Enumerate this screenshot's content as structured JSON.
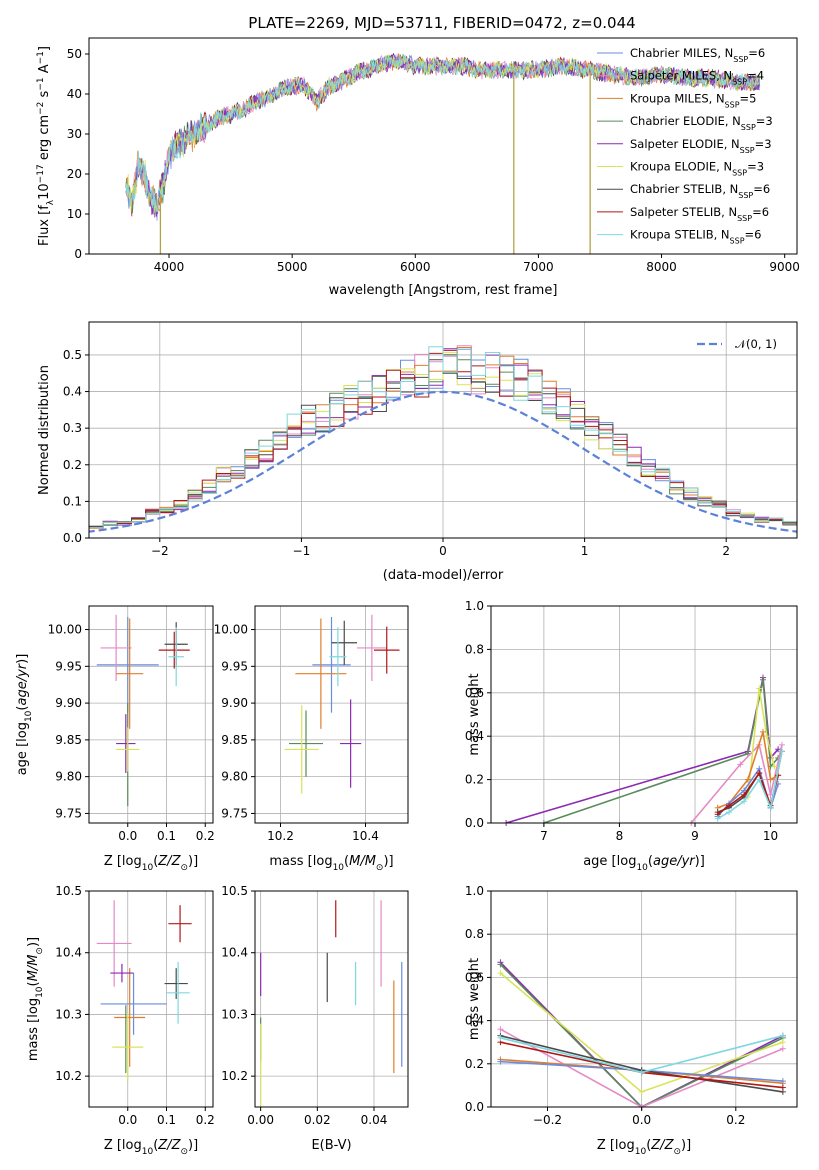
{
  "title": "PLATE=2269, MJD=53711, FIBERID=0472, z=0.044",
  "colors": {
    "chabrier_miles": "#6a8be0",
    "salpeter_miles": "#e58ac7",
    "kroupa_miles": "#e07f2b",
    "chabrier_elodie": "#5a8a5a",
    "salpeter_elodie": "#8c2ab0",
    "kroupa_elodie": "#d9e35a",
    "chabrier_stelib": "#4a4a4a",
    "salpeter_stelib": "#b01818",
    "kroupa_stelib": "#7fd8df"
  },
  "models": [
    {
      "key": "chabrier_miles",
      "label": "Chabrier MILES, N",
      "n": "=6"
    },
    {
      "key": "salpeter_miles",
      "label": "Salpeter MILES, N",
      "n": "=4"
    },
    {
      "key": "kroupa_miles",
      "label": "Kroupa MILES, N",
      "n": "=5"
    },
    {
      "key": "chabrier_elodie",
      "label": "Chabrier ELODIE, N",
      "n": "=3"
    },
    {
      "key": "salpeter_elodie",
      "label": "Salpeter ELODIE, N",
      "n": "=3"
    },
    {
      "key": "kroupa_elodie",
      "label": "Kroupa ELODIE, N",
      "n": "=3"
    },
    {
      "key": "chabrier_stelib",
      "label": "Chabrier STELIB, N",
      "n": "=6"
    },
    {
      "key": "salpeter_stelib",
      "label": "Salpeter STELIB, N",
      "n": "=6"
    },
    {
      "key": "kroupa_stelib",
      "label": "Kroupa STELIB, N",
      "n": "=6"
    }
  ],
  "nssp_sub": "SSP",
  "chart_data": [
    {
      "type": "line",
      "xlabel": "wavelength [Angstrom, rest frame]",
      "ylabel_parts": [
        "Flux [f",
        "λ",
        "10",
        "−17",
        " erg cm",
        "−2",
        " s",
        "−1",
        " A",
        "−1",
        "]"
      ],
      "xlim": [
        3350,
        9100
      ],
      "ylim": [
        0,
        54
      ],
      "xticks": [
        4000,
        5000,
        6000,
        7000,
        8000,
        9000
      ],
      "yticks": [
        0,
        10,
        20,
        30,
        40,
        50
      ],
      "spectrum_anchors": [
        [
          3650,
          17
        ],
        [
          3700,
          13
        ],
        [
          3750,
          22
        ],
        [
          3800,
          20
        ],
        [
          3850,
          14
        ],
        [
          3900,
          12
        ],
        [
          3950,
          17
        ],
        [
          4000,
          25
        ],
        [
          4100,
          28
        ],
        [
          4200,
          30
        ],
        [
          4300,
          32
        ],
        [
          4400,
          34
        ],
        [
          4500,
          35
        ],
        [
          4600,
          36
        ],
        [
          4700,
          38
        ],
        [
          4800,
          39
        ],
        [
          4900,
          41
        ],
        [
          5000,
          42
        ],
        [
          5100,
          42
        ],
        [
          5200,
          38
        ],
        [
          5300,
          42
        ],
        [
          5400,
          43
        ],
        [
          5500,
          45
        ],
        [
          5600,
          46
        ],
        [
          5700,
          47
        ],
        [
          5800,
          48
        ],
        [
          5900,
          48
        ],
        [
          6000,
          47
        ],
        [
          6100,
          47
        ],
        [
          6200,
          47
        ],
        [
          6300,
          47
        ],
        [
          6400,
          47
        ],
        [
          6500,
          46
        ],
        [
          6600,
          46
        ],
        [
          6800,
          46
        ],
        [
          7000,
          46
        ],
        [
          7200,
          47
        ],
        [
          7400,
          46
        ],
        [
          7600,
          45
        ],
        [
          7800,
          44
        ],
        [
          8000,
          45
        ],
        [
          8200,
          44
        ],
        [
          8400,
          44
        ],
        [
          8600,
          43
        ],
        [
          8800,
          43
        ]
      ],
      "dips": [
        {
          "x": 3930,
          "y": 0
        },
        {
          "x": 6800,
          "y": 0
        },
        {
          "x": 7420,
          "y": 0
        }
      ]
    },
    {
      "type": "bar",
      "xlabel": "(data-model)/error",
      "ylabel": "Normed distribution",
      "xlim": [
        -2.5,
        2.5
      ],
      "ylim": [
        0,
        0.59
      ],
      "xticks": [
        -2,
        -1,
        0,
        1,
        2
      ],
      "xticklabels": [
        "−2",
        "−1",
        "0",
        "1",
        "2"
      ],
      "yticks": [
        0,
        0.1,
        0.2,
        0.3,
        0.4,
        0.5
      ],
      "yticklabels": [
        "0.0",
        "0.1",
        "0.2",
        "0.3",
        "0.4",
        "0.5"
      ],
      "bin_width": 0.1,
      "base_hist": [
        0.01,
        0.02,
        0.02,
        0.03,
        0.02,
        0.03,
        0.04,
        0.04,
        0.05,
        0.07,
        0.08,
        0.09,
        0.12,
        0.14,
        0.17,
        0.19,
        0.22,
        0.24,
        0.27,
        0.3,
        0.32,
        0.33,
        0.35,
        0.37,
        0.38,
        0.4,
        0.41,
        0.43,
        0.44,
        0.46,
        0.47,
        0.47,
        0.45,
        0.46,
        0.44,
        0.43,
        0.41,
        0.38,
        0.36,
        0.34,
        0.31,
        0.28,
        0.25,
        0.22,
        0.19,
        0.17,
        0.14,
        0.12,
        0.1,
        0.09,
        0.07,
        0.06,
        0.05,
        0.05,
        0.04,
        0.03,
        0.03,
        0.02,
        0.02,
        0.01
      ],
      "normal_label": "𝒩(0, 1)"
    },
    {
      "type": "scatter",
      "xlabel": "Z [log",
      "ylabel": "age  [log",
      "xlim": [
        -0.1,
        0.22
      ],
      "ylim": [
        9.737,
        10.032
      ],
      "xticks": [
        0.0,
        0.1,
        0.2
      ],
      "xticklabels": [
        "0.0",
        "0.1",
        "0.2"
      ],
      "yticks": [
        9.75,
        9.8,
        9.85,
        9.9,
        9.95,
        10.0
      ],
      "yticklabels": [
        "9.75",
        "9.80",
        "9.85",
        "9.90",
        "9.95",
        "10.00"
      ],
      "points": [
        {
          "key": "chabrier_miles",
          "x": 0.0,
          "xe": 0.08,
          "y": 9.952,
          "ye": 0.065
        },
        {
          "key": "salpeter_miles",
          "x": -0.03,
          "xe": 0.04,
          "y": 9.975,
          "ye": 0.045
        },
        {
          "key": "kroupa_miles",
          "x": 0.005,
          "xe": 0.035,
          "y": 9.94,
          "ye": 0.075
        },
        {
          "key": "chabrier_elodie",
          "x": 0.0,
          "xe": 0.0,
          "y": 9.83,
          "ye": 0.07
        },
        {
          "key": "salpeter_elodie",
          "x": -0.005,
          "xe": 0.025,
          "y": 9.845,
          "ye": 0.04
        },
        {
          "key": "kroupa_elodie",
          "x": 0.0,
          "xe": 0.03,
          "y": 9.837,
          "ye": 0.03
        },
        {
          "key": "chabrier_stelib",
          "x": 0.125,
          "xe": 0.03,
          "y": 9.98,
          "ye": 0.03
        },
        {
          "key": "salpeter_stelib",
          "x": 0.12,
          "xe": 0.04,
          "y": 9.972,
          "ye": 0.025
        },
        {
          "key": "kroupa_stelib",
          "x": 0.125,
          "xe": 0.02,
          "y": 9.963,
          "ye": 0.04
        }
      ]
    },
    {
      "type": "scatter",
      "xlabel": "mass [log",
      "ylabel": "",
      "xlim": [
        10.14,
        10.5
      ],
      "ylim": [
        9.737,
        10.032
      ],
      "xticks": [
        10.2,
        10.4
      ],
      "xticklabels": [
        "10.2",
        "10.4"
      ],
      "yticks": [
        9.75,
        9.8,
        9.85,
        9.9,
        9.95,
        10.0
      ],
      "yticklabels": [
        "9.75",
        "9.80",
        "9.85",
        "9.90",
        "9.95",
        "10.00"
      ],
      "points": [
        {
          "key": "chabrier_miles",
          "x": 10.32,
          "xe": 0.045,
          "y": 9.952,
          "ye": 0.065
        },
        {
          "key": "salpeter_miles",
          "x": 10.415,
          "xe": 0.035,
          "y": 9.975,
          "ye": 0.045
        },
        {
          "key": "kroupa_miles",
          "x": 10.295,
          "xe": 0.06,
          "y": 9.94,
          "ye": 0.075
        },
        {
          "key": "chabrier_elodie",
          "x": 10.26,
          "xe": 0.04,
          "y": 9.845,
          "ye": 0.045
        },
        {
          "key": "salpeter_elodie",
          "x": 10.365,
          "xe": 0.025,
          "y": 9.845,
          "ye": 0.06
        },
        {
          "key": "kroupa_elodie",
          "x": 10.25,
          "xe": 0.04,
          "y": 9.837,
          "ye": 0.06
        },
        {
          "key": "chabrier_stelib",
          "x": 10.35,
          "xe": 0.03,
          "y": 9.982,
          "ye": 0.03
        },
        {
          "key": "salpeter_stelib",
          "x": 10.45,
          "xe": 0.03,
          "y": 9.972,
          "ye": 0.032
        },
        {
          "key": "kroupa_stelib",
          "x": 10.335,
          "xe": 0.02,
          "y": 9.963,
          "ye": 0.04
        }
      ]
    },
    {
      "type": "line",
      "xlabel": "age  [log",
      "ylabel": "mass weight",
      "xlim": [
        6.3,
        10.35
      ],
      "ylim": [
        0,
        1
      ],
      "xticks": [
        7,
        8,
        9,
        10
      ],
      "xticklabels": [
        "7",
        "8",
        "9",
        "10"
      ],
      "yticks": [
        0,
        0.2,
        0.4,
        0.6,
        0.8,
        1.0
      ],
      "yticklabels": [
        "0.0",
        "0.2",
        "0.4",
        "0.6",
        "0.8",
        "1.0"
      ],
      "series": [
        {
          "key": "salpeter_elodie",
          "x": [
            6.5,
            9.7,
            9.9,
            10.0,
            10.1
          ],
          "y": [
            0.0,
            0.33,
            0.67,
            0.3,
            0.34
          ]
        },
        {
          "key": "chabrier_elodie",
          "x": [
            7.0,
            9.7,
            9.9,
            10.0,
            10.1
          ],
          "y": [
            0.0,
            0.32,
            0.66,
            0.26,
            0.3
          ]
        },
        {
          "key": "salpeter_miles",
          "x": [
            8.95,
            9.6,
            9.85,
            10.0,
            10.15
          ],
          "y": [
            0.0,
            0.27,
            0.36,
            0.13,
            0.36
          ]
        },
        {
          "key": "kroupa_elodie",
          "x": [
            9.7,
            9.85,
            9.95,
            10.05
          ],
          "y": [
            0.12,
            0.62,
            0.4,
            0.26
          ]
        },
        {
          "key": "kroupa_miles",
          "x": [
            9.3,
            9.45,
            9.7,
            9.9,
            10.0,
            10.1
          ],
          "y": [
            0.07,
            0.09,
            0.2,
            0.42,
            0.2,
            0.22
          ]
        },
        {
          "key": "chabrier_miles",
          "x": [
            9.3,
            9.45,
            9.65,
            9.85,
            10.0,
            10.1
          ],
          "y": [
            0.03,
            0.09,
            0.15,
            0.25,
            0.07,
            0.18
          ]
        },
        {
          "key": "chabrier_stelib",
          "x": [
            9.3,
            9.45,
            9.65,
            9.85,
            10.0,
            10.15
          ],
          "y": [
            0.05,
            0.07,
            0.12,
            0.23,
            0.07,
            0.33
          ]
        },
        {
          "key": "salpeter_stelib",
          "x": [
            9.3,
            9.45,
            9.65,
            9.85,
            10.0,
            10.1
          ],
          "y": [
            0.04,
            0.08,
            0.13,
            0.23,
            0.08,
            0.22
          ]
        },
        {
          "key": "kroupa_stelib",
          "x": [
            9.3,
            9.45,
            9.65,
            9.85,
            10.0,
            10.15
          ],
          "y": [
            0.02,
            0.05,
            0.1,
            0.2,
            0.07,
            0.33
          ]
        }
      ]
    },
    {
      "type": "scatter",
      "xlabel": "Z [log",
      "ylabel": "mass [log",
      "xlim": [
        -0.1,
        0.22
      ],
      "ylim": [
        10.15,
        10.5
      ],
      "xticks": [
        0.0,
        0.1,
        0.2
      ],
      "xticklabels": [
        "0.0",
        "0.1",
        "0.2"
      ],
      "yticks": [
        10.2,
        10.3,
        10.4,
        10.5
      ],
      "yticklabels": [
        "10.2",
        "10.3",
        "10.4",
        "10.5"
      ],
      "points": [
        {
          "key": "chabrier_miles",
          "x": 0.015,
          "xe": 0.085,
          "y": 10.317,
          "ye": 0.05
        },
        {
          "key": "salpeter_miles",
          "x": -0.035,
          "xe": 0.045,
          "y": 10.415,
          "ye": 0.07
        },
        {
          "key": "kroupa_miles",
          "x": 0.005,
          "xe": 0.04,
          "y": 10.295,
          "ye": 0.08
        },
        {
          "key": "chabrier_elodie",
          "x": -0.005,
          "xe": 0.0,
          "y": 10.26,
          "ye": 0.055
        },
        {
          "key": "salpeter_elodie",
          "x": -0.015,
          "xe": 0.03,
          "y": 10.367,
          "ye": 0.015
        },
        {
          "key": "kroupa_elodie",
          "x": 0.0,
          "xe": 0.04,
          "y": 10.247,
          "ye": 0.055
        },
        {
          "key": "chabrier_stelib",
          "x": 0.125,
          "xe": 0.03,
          "y": 10.35,
          "ye": 0.025
        },
        {
          "key": "salpeter_stelib",
          "x": 0.135,
          "xe": 0.03,
          "y": 10.447,
          "ye": 0.03
        },
        {
          "key": "kroupa_stelib",
          "x": 0.13,
          "xe": 0.03,
          "y": 10.335,
          "ye": 0.05
        }
      ]
    },
    {
      "type": "scatter",
      "xlabel": "E(B-V)",
      "ylabel": "",
      "xlim": [
        -0.002,
        0.052
      ],
      "ylim": [
        10.15,
        10.5
      ],
      "xticks": [
        0.0,
        0.02,
        0.04
      ],
      "xticklabels": [
        "0.00",
        "0.02",
        "0.04"
      ],
      "yticks": [
        10.2,
        10.3,
        10.4,
        10.5
      ],
      "yticklabels": [
        "10.2",
        "10.3",
        "10.4",
        "10.5"
      ],
      "points": [
        {
          "key": "chabrier_miles",
          "x": 0.0498,
          "xe": 0,
          "y": 10.3,
          "ye": 0.085
        },
        {
          "key": "salpeter_miles",
          "x": 0.0425,
          "xe": 0,
          "y": 10.415,
          "ye": 0.07
        },
        {
          "key": "kroupa_miles",
          "x": 0.047,
          "xe": 0,
          "y": 10.28,
          "ye": 0.075
        },
        {
          "key": "chabrier_elodie",
          "x": 0.0,
          "xe": 0,
          "y": 10.26,
          "ye": 0.035
        },
        {
          "key": "salpeter_elodie",
          "x": 0.0,
          "xe": 0,
          "y": 10.365,
          "ye": 0.035
        },
        {
          "key": "kroupa_elodie",
          "x": 0.0,
          "xe": 0,
          "y": 10.215,
          "ye": 0.07
        },
        {
          "key": "chabrier_stelib",
          "x": 0.0235,
          "xe": 0,
          "y": 10.36,
          "ye": 0.04
        },
        {
          "key": "salpeter_stelib",
          "x": 0.0265,
          "xe": 0,
          "y": 10.455,
          "ye": 0.03
        },
        {
          "key": "kroupa_stelib",
          "x": 0.0335,
          "xe": 0,
          "y": 10.35,
          "ye": 0.035
        }
      ]
    },
    {
      "type": "line",
      "xlabel": "Z [log",
      "ylabel": "mass weight",
      "xlim": [
        -0.32,
        0.33
      ],
      "ylim": [
        0,
        1
      ],
      "xticks": [
        -0.2,
        0.0,
        0.2
      ],
      "xticklabels": [
        "−0.2",
        "0.0",
        "0.2"
      ],
      "yticks": [
        0,
        0.2,
        0.4,
        0.6,
        0.8,
        1.0
      ],
      "yticklabels": [
        "0.0",
        "0.2",
        "0.4",
        "0.6",
        "0.8",
        "1.0"
      ],
      "series": [
        {
          "key": "salpeter_elodie",
          "x": [
            -0.3,
            0.0,
            0.3
          ],
          "y": [
            0.67,
            0.0,
            0.33
          ]
        },
        {
          "key": "chabrier_elodie",
          "x": [
            -0.3,
            0.0,
            0.3
          ],
          "y": [
            0.66,
            0.0,
            0.32
          ]
        },
        {
          "key": "kroupa_elodie",
          "x": [
            -0.3,
            0.0,
            0.3
          ],
          "y": [
            0.62,
            0.07,
            0.3
          ]
        },
        {
          "key": "salpeter_miles",
          "x": [
            -0.3,
            0.0,
            0.3
          ],
          "y": [
            0.36,
            0.0,
            0.27
          ]
        },
        {
          "key": "kroupa_miles",
          "x": [
            -0.3,
            0.0,
            0.3
          ],
          "y": [
            0.22,
            0.17,
            0.11
          ]
        },
        {
          "key": "chabrier_miles",
          "x": [
            -0.3,
            0.0,
            0.3
          ],
          "y": [
            0.21,
            0.17,
            0.12
          ]
        },
        {
          "key": "chabrier_stelib",
          "x": [
            -0.3,
            0.0,
            0.3
          ],
          "y": [
            0.33,
            0.17,
            0.07
          ]
        },
        {
          "key": "salpeter_stelib",
          "x": [
            -0.3,
            0.0,
            0.3
          ],
          "y": [
            0.3,
            0.16,
            0.09
          ]
        },
        {
          "key": "kroupa_stelib",
          "x": [
            -0.3,
            0.0,
            0.3
          ],
          "y": [
            0.32,
            0.16,
            0.33
          ]
        }
      ]
    }
  ],
  "sub_z": "10",
  "solar_sub": "⊙",
  "age_unit": "(age/yr)",
  "mass_unit": "(M/M",
  "z_unit": "(Z/Z"
}
